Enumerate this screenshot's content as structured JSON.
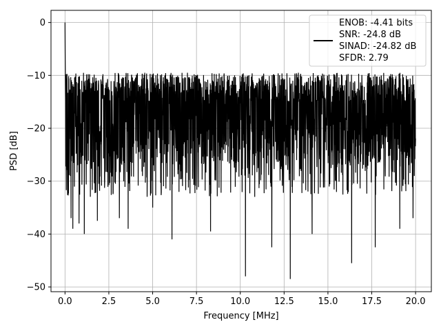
{
  "chart_data": {
    "type": "line",
    "title": "",
    "xlabel": "Frequency [MHz]",
    "ylabel": "PSD [dB]",
    "xlim": [
      -0.8,
      20.9
    ],
    "ylim": [
      -50.9,
      2.3
    ],
    "xticks": [
      0.0,
      2.5,
      5.0,
      7.5,
      10.0,
      12.5,
      15.0,
      17.5,
      20.0
    ],
    "xtick_labels": [
      "0.0",
      "2.5",
      "5.0",
      "7.5",
      "10.0",
      "12.5",
      "15.0",
      "17.5",
      "20.0"
    ],
    "yticks": [
      0,
      -10,
      -20,
      -30,
      -40,
      -50
    ],
    "ytick_labels": [
      "0",
      "−10",
      "−20",
      "−30",
      "−40",
      "−50"
    ],
    "grid": true,
    "legend_position": "top-right",
    "legend_lines": [
      "ENOB: -4.41 bits",
      "SNR: -24.8 dB",
      "SINAD: -24.82 dB",
      "SFDR: 2.79"
    ],
    "series_color": "#000000",
    "series": [
      {
        "x_range": [
          0.0,
          20.0
        ],
        "summary": {
          "peak": [
            0.0,
            0.0
          ],
          "upper_envelope_db": -9.5,
          "lower_envelope_db": -27.0,
          "dips": [
            [
              0.35,
              -37.0
            ],
            [
              0.45,
              -39.0
            ],
            [
              0.8,
              -38.0
            ],
            [
              1.1,
              -40.0
            ],
            [
              1.85,
              -37.5
            ],
            [
              3.1,
              -37.0
            ],
            [
              3.6,
              -39.0
            ],
            [
              5.0,
              -35.0
            ],
            [
              6.1,
              -41.0
            ],
            [
              8.3,
              -39.5
            ],
            [
              10.3,
              -48.0
            ],
            [
              11.8,
              -42.5
            ],
            [
              12.85,
              -48.5
            ],
            [
              14.1,
              -40.0
            ],
            [
              16.35,
              -45.5
            ],
            [
              17.7,
              -42.5
            ],
            [
              19.1,
              -39.0
            ],
            [
              19.85,
              -37.0
            ]
          ]
        }
      }
    ]
  }
}
